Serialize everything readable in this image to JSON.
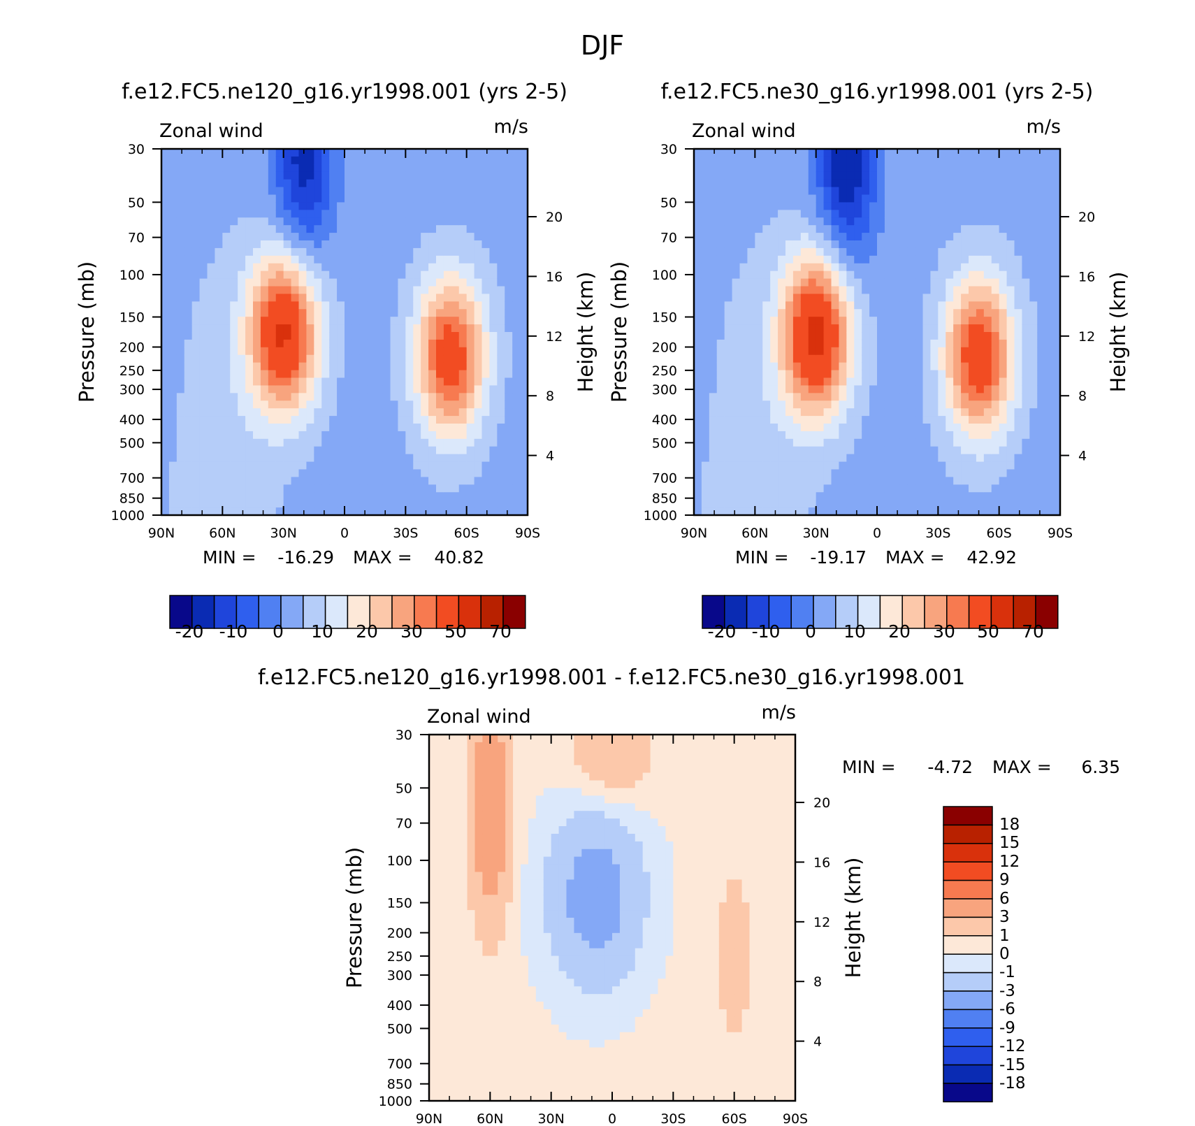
{
  "figure": {
    "title": "DJF"
  },
  "colors": {
    "abs_palette": [
      "#08088a",
      "#0a2bb3",
      "#1f45db",
      "#2f5fee",
      "#5080f2",
      "#84a8f6",
      "#b5cdf9",
      "#dbe8fb",
      "#fde8d8",
      "#fcc8aa",
      "#f8a47e",
      "#f77a50",
      "#f24c22",
      "#d9310c",
      "#b82100",
      "#8a0000"
    ],
    "diff_palette": [
      "#08088a",
      "#0a2bb3",
      "#1f45db",
      "#2f5fee",
      "#5080f2",
      "#84a8f6",
      "#b5cdf9",
      "#dbe8fb",
      "#fde8d8",
      "#fcc8aa",
      "#f8a47e",
      "#f77a50",
      "#f24c22",
      "#d9310c",
      "#b82100",
      "#8a0000"
    ]
  },
  "chart_data": [
    {
      "type": "heatmap",
      "title": "f.e12.FC5.ne120_g16.yr1998.001 (yrs 2-5)",
      "left_label": "Zonal wind",
      "right_label": "m/s",
      "ylabel": "Pressure (mb)",
      "y2label": "Height (km)",
      "x_ticks": [
        "90N",
        "60N",
        "30N",
        "0",
        "30S",
        "60S",
        "90S"
      ],
      "y_ticks": [
        30,
        50,
        70,
        100,
        150,
        200,
        250,
        300,
        400,
        500,
        700,
        850,
        1000
      ],
      "y2_ticks": [
        20,
        16,
        12,
        8,
        4
      ],
      "min_label": "MIN =",
      "min_value": "-16.29",
      "max_label": "MAX =",
      "max_value": "40.82",
      "colorbar_labels": [
        "-20",
        "-10",
        "0",
        "10",
        "20",
        "30",
        "50",
        "70"
      ],
      "jets": [
        {
          "lat": 30,
          "p": 175,
          "max": 40.82
        },
        {
          "lat": -52,
          "p": 220,
          "max": 35
        }
      ],
      "min_lat": 20,
      "min_value_num": -16.29
    },
    {
      "type": "heatmap",
      "title": "f.e12.FC5.ne30_g16.yr1998.001 (yrs 2-5)",
      "left_label": "Zonal wind",
      "right_label": "m/s",
      "ylabel": "Pressure (mb)",
      "y2label": "Height (km)",
      "x_ticks": [
        "90N",
        "60N",
        "30N",
        "0",
        "30S",
        "60S",
        "90S"
      ],
      "y_ticks": [
        30,
        50,
        70,
        100,
        150,
        200,
        250,
        300,
        400,
        500,
        700,
        850,
        1000
      ],
      "y2_ticks": [
        20,
        16,
        12,
        8,
        4
      ],
      "min_label": "MIN =",
      "min_value": "-19.17",
      "max_label": "MAX =",
      "max_value": "42.92",
      "colorbar_labels": [
        "-20",
        "-10",
        "0",
        "10",
        "20",
        "30",
        "50",
        "70"
      ],
      "jets": [
        {
          "lat": 30,
          "p": 180,
          "max": 42.92
        },
        {
          "lat": -50,
          "p": 220,
          "max": 36
        }
      ],
      "min_lat": 15,
      "min_value_num": -19.17
    },
    {
      "type": "heatmap",
      "title": "f.e12.FC5.ne120_g16.yr1998.001 - f.e12.FC5.ne30_g16.yr1998.001",
      "left_label": "Zonal wind",
      "right_label": "m/s",
      "ylabel": "Pressure (mb)",
      "y2label": "Height (km)",
      "x_ticks": [
        "90N",
        "60N",
        "30N",
        "0",
        "30S",
        "60S",
        "90S"
      ],
      "y_ticks": [
        30,
        50,
        70,
        100,
        150,
        200,
        250,
        300,
        400,
        500,
        700,
        850,
        1000
      ],
      "y2_ticks": [
        20,
        16,
        12,
        8,
        4
      ],
      "min_label": "MIN =",
      "min_value": "-4.72",
      "max_label": "MAX =",
      "max_value": "6.35",
      "colorbar_labels": [
        "18",
        "15",
        "12",
        "9",
        "6",
        "3",
        "1",
        "0",
        "-1",
        "-3",
        "-6",
        "-9",
        "-12",
        "-15",
        "-18"
      ]
    }
  ]
}
